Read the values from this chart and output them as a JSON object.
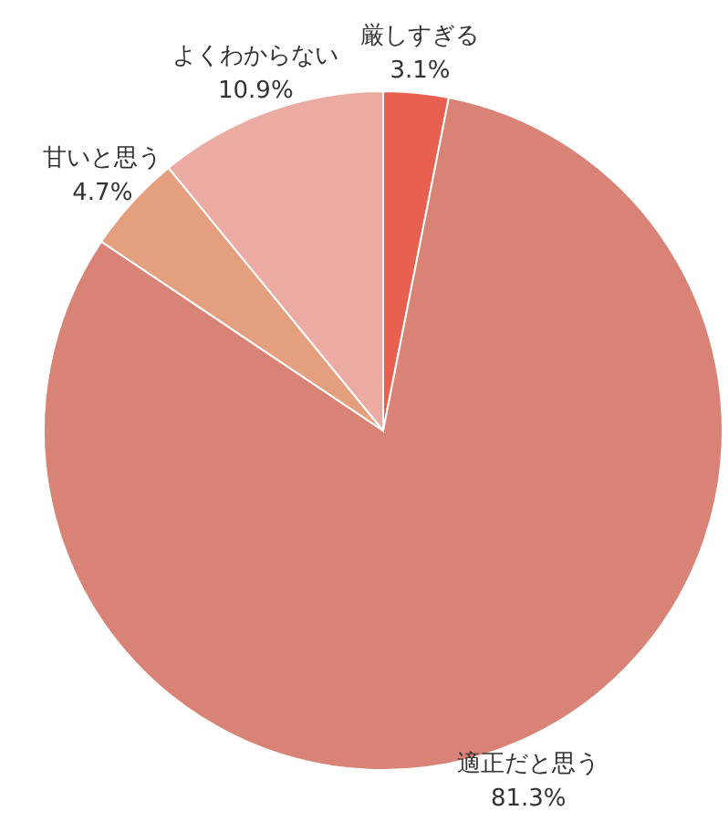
{
  "chart_data": {
    "type": "pie",
    "categories": [
      "厳しすぎる",
      "適正だと思う",
      "甘いと思う",
      "よくわからない"
    ],
    "values": [
      3.1,
      81.3,
      4.7,
      10.9
    ],
    "colors": [
      "#e8604f",
      "#d98276",
      "#e4a07e",
      "#ebaaa2"
    ],
    "value_labels": [
      "3.1%",
      "81.3%",
      "4.7%",
      "10.9%"
    ]
  }
}
